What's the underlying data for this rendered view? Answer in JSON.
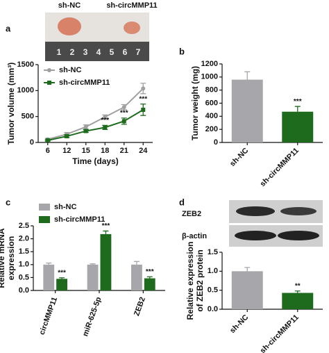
{
  "photo": {
    "labels": [
      "sh-NC",
      "sh-circMMP11"
    ],
    "ruler": [
      1,
      2,
      3,
      4,
      5,
      6,
      7
    ]
  },
  "blot": {
    "labels": [
      "ZEB2",
      "β-actin"
    ]
  },
  "chart_data": [
    {
      "type": "line",
      "label": "a",
      "categories": [
        "6",
        "12",
        "15",
        "18",
        "21",
        "24"
      ],
      "xlabel": "Time (days)",
      "ylabel": [
        "Tumor volume (mm³)"
      ],
      "ylim": [
        0,
        1500
      ],
      "yticks": [
        0,
        500,
        1000,
        1500
      ],
      "legend": "upper left",
      "series": [
        {
          "name": "sh-NC",
          "color": "#a0a0a0",
          "values": [
            60,
            160,
            300,
            490,
            680,
            1040
          ],
          "errors": [
            20,
            30,
            40,
            40,
            50,
            100
          ]
        },
        {
          "name": "sh-circMMP11",
          "color": "#1e6b1e",
          "values": [
            40,
            120,
            220,
            290,
            410,
            630
          ],
          "errors": [
            15,
            25,
            25,
            40,
            60,
            110
          ],
          "significance": [
            null,
            null,
            null,
            "***",
            "***",
            "***"
          ]
        }
      ]
    },
    {
      "type": "bar",
      "label": "b",
      "categories": [
        "sh-NC",
        "sh-circMMP11"
      ],
      "ylabel": [
        "Tumor weight (mg)"
      ],
      "ylim": [
        0,
        1200
      ],
      "yticks": [
        0,
        200,
        400,
        600,
        800,
        1000,
        1200
      ],
      "colors": [
        "#a7a7ab",
        "#1e6b1e"
      ],
      "values": [
        960,
        470
      ],
      "errors": [
        120,
        80
      ],
      "significance": [
        null,
        "***"
      ]
    },
    {
      "type": "bar",
      "label": "c",
      "categories": [
        "circMMP11",
        "miR-625-5p",
        "ZEB2"
      ],
      "ylabel": [
        "Relative mRNA",
        "expression"
      ],
      "ylim": [
        0,
        2.5
      ],
      "yticks": [
        {
          "value": 0,
          "label": "0.0"
        },
        0.5,
        {
          "value": 1,
          "label": "1.0"
        },
        1.5,
        {
          "value": 2,
          "label": "2.0"
        },
        2.5
      ],
      "legend": "upper left",
      "series": [
        {
          "name": "sh-NC",
          "color": "#a7a7ab",
          "values": [
            1.0,
            1.0,
            1.0
          ],
          "errors": [
            0.06,
            0.03,
            0.12
          ]
        },
        {
          "name": "sh-circMMP11",
          "color": "#1e6b1e",
          "values": [
            0.45,
            2.18,
            0.47
          ],
          "errors": [
            0.04,
            0.12,
            0.06
          ],
          "significance": [
            "***",
            "***",
            "***"
          ]
        }
      ]
    },
    {
      "type": "bar",
      "label": "d",
      "categories": [
        "sh-NC",
        "sh-circMMP11"
      ],
      "ylabel": [
        "Relative expression",
        "of ZEB2 protein"
      ],
      "ylim": [
        0,
        1.5
      ],
      "yticks": [
        {
          "value": 0,
          "label": "0.0"
        },
        0.5,
        {
          "value": 1,
          "label": "1.0"
        },
        1.5
      ],
      "colors": [
        "#a7a7ab",
        "#1e6b1e"
      ],
      "values": [
        1.0,
        0.43
      ],
      "errors": [
        0.1,
        0.05
      ],
      "significance": [
        null,
        "**"
      ]
    }
  ]
}
